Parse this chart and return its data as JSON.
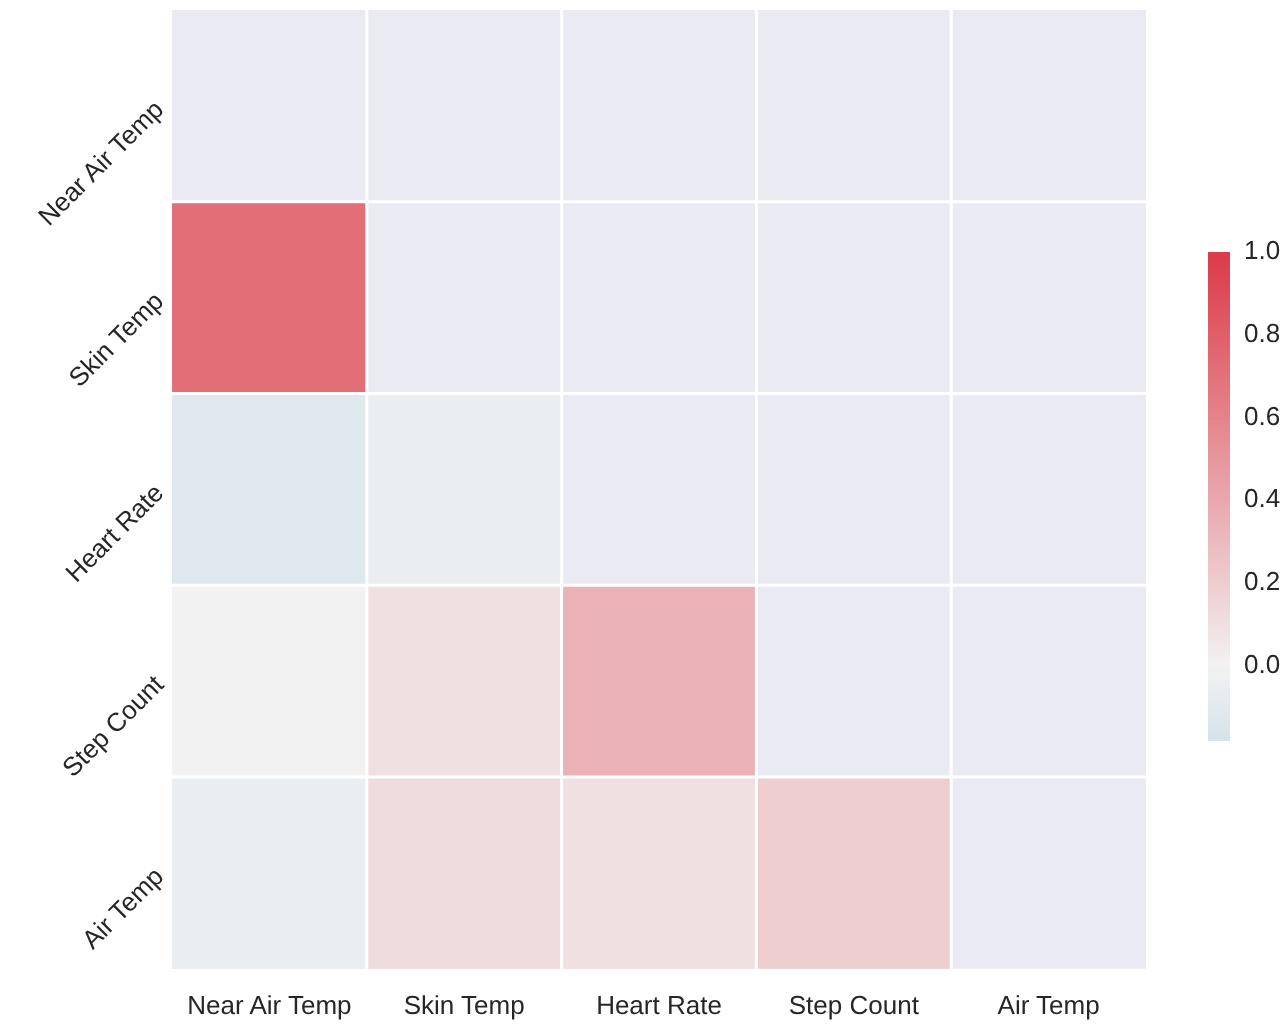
{
  "chart_data": {
    "type": "heatmap",
    "categories": [
      "Near Air Temp",
      "Skin Temp",
      "Heart Rate",
      "Step Count",
      "Air Temp"
    ],
    "y_categories": [
      "Near Air Temp",
      "Skin Temp",
      "Heart Rate",
      "Step Count",
      "Air Temp"
    ],
    "cells": [
      [
        null,
        null,
        null,
        null,
        null
      ],
      [
        0.72,
        null,
        null,
        null,
        null
      ],
      [
        -0.12,
        -0.05,
        null,
        null,
        null
      ],
      [
        0.0,
        0.1,
        0.35,
        null,
        null
      ],
      [
        -0.05,
        0.12,
        0.1,
        0.2,
        null
      ]
    ],
    "clim": [
      -0.18,
      1.0
    ],
    "cticks": [
      {
        "value": 1.0,
        "label": "1.0"
      },
      {
        "value": 0.8,
        "label": "0.8"
      },
      {
        "value": 0.6,
        "label": "0.6"
      },
      {
        "value": 0.4,
        "label": "0.4"
      },
      {
        "value": 0.2,
        "label": "0.2"
      },
      {
        "value": 0.0,
        "label": "0.0"
      }
    ]
  }
}
